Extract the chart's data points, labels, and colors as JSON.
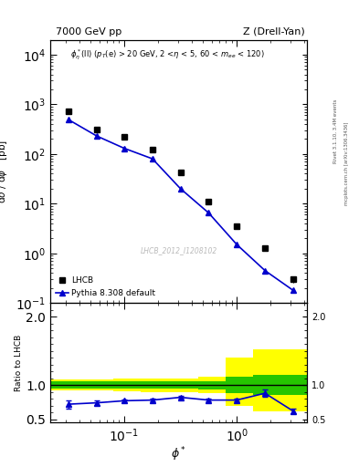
{
  "title_left": "7000 GeV pp",
  "title_right": "Z (Drell-Yan)",
  "annotation": "$\\phi^*_{\\eta}$(ll) ($p_T$(e) > 20 GeV, 2 <$\\eta$ < 5, 60 < $m_{ee}$ < 120)",
  "xlabel": "$\\phi^*$",
  "ylabel_main": "d$\\sigma$ / d$\\phi^*$ [pb]",
  "ylabel_ratio": "Ratio to LHCB",
  "right_label_top": "Rivet 3.1.10, 3.4M events",
  "right_label_bot": "mcplots.cern.ch [arXiv:1306.3436]",
  "watermark": "LHCB_2012_I1208102",
  "lhcb_x": [
    0.032,
    0.057,
    0.1,
    0.178,
    0.316,
    0.562,
    1.0,
    1.778,
    3.162
  ],
  "lhcb_y": [
    730,
    310,
    220,
    120,
    43,
    11,
    3.5,
    1.3,
    0.3
  ],
  "lhcb_yerr": [
    60,
    25,
    18,
    10,
    4,
    1.1,
    0.4,
    0.15,
    0.05
  ],
  "pythia_x": [
    0.032,
    0.057,
    0.1,
    0.178,
    0.316,
    0.562,
    1.0,
    1.778,
    3.162
  ],
  "pythia_y": [
    490,
    230,
    130,
    80,
    20,
    6.5,
    1.5,
    0.45,
    0.18
  ],
  "ratio_x": [
    0.032,
    0.057,
    0.1,
    0.178,
    0.316,
    0.562,
    1.0,
    1.778,
    3.162
  ],
  "ratio_y": [
    0.72,
    0.74,
    0.77,
    0.78,
    0.82,
    0.78,
    0.78,
    0.88,
    0.62
  ],
  "ratio_yerr": [
    0.06,
    0.03,
    0.02,
    0.02,
    0.02,
    0.02,
    0.02,
    0.05,
    0.03
  ],
  "band_edges": [
    0.02,
    0.045,
    0.08,
    0.14,
    0.25,
    0.45,
    0.8,
    1.4,
    4.5
  ],
  "band_yellow_lo": [
    0.92,
    0.92,
    0.91,
    0.9,
    0.9,
    0.88,
    0.7,
    0.62
  ],
  "band_yellow_hi": [
    1.08,
    1.08,
    1.09,
    1.1,
    1.1,
    1.12,
    1.4,
    1.52
  ],
  "band_green_lo": [
    0.95,
    0.95,
    0.95,
    0.95,
    0.95,
    0.94,
    0.88,
    0.85
  ],
  "band_green_hi": [
    1.05,
    1.05,
    1.05,
    1.05,
    1.05,
    1.06,
    1.12,
    1.15
  ],
  "ylim_main": [
    0.1,
    20000
  ],
  "ylim_ratio": [
    0.45,
    2.2
  ],
  "xlim": [
    0.022,
    4.2
  ],
  "color_data": "black",
  "color_pythia": "#0000cc",
  "color_yellow": "#ffff00",
  "color_green": "#00bb00"
}
